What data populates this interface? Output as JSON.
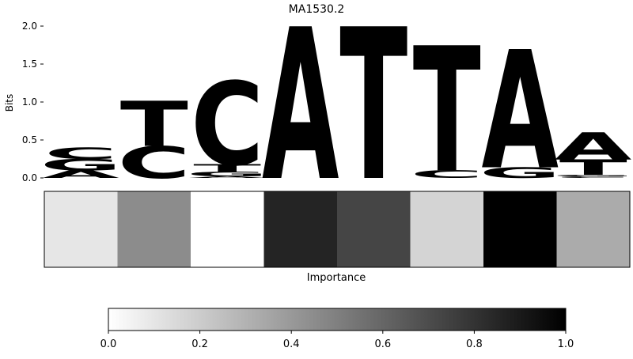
{
  "chart_data": [
    {
      "type": "sequence-logo",
      "title": "MA1530.2",
      "ylabel": "Bits",
      "ylim": [
        0,
        2.0
      ],
      "yticks": [
        "0.0",
        "0.5",
        "1.0",
        "1.5",
        "2.0"
      ],
      "yticks_values": [
        0,
        0.5,
        1.0,
        1.5,
        2.0
      ],
      "positions": [
        [
          {
            "base": "A",
            "height": 0.1
          },
          {
            "base": "G",
            "height": 0.15
          },
          {
            "base": "C",
            "height": 0.15
          }
        ],
        [
          {
            "base": "C",
            "height": 0.42
          },
          {
            "base": "T",
            "height": 0.6
          }
        ],
        [
          {
            "base": "A",
            "height": 0.02
          },
          {
            "base": "G",
            "height": 0.06
          },
          {
            "base": "T",
            "height": 0.1
          },
          {
            "base": "C",
            "height": 1.1
          }
        ],
        [
          {
            "base": "A",
            "height": 2.0
          }
        ],
        [
          {
            "base": "T",
            "height": 2.0
          }
        ],
        [
          {
            "base": "C",
            "height": 0.1
          },
          {
            "base": "T",
            "height": 1.65
          }
        ],
        [
          {
            "base": "G",
            "height": 0.14
          },
          {
            "base": "A",
            "height": 1.56
          }
        ],
        [
          {
            "base": "C",
            "height": 0.02
          },
          {
            "base": "G",
            "height": 0.02
          },
          {
            "base": "T",
            "height": 0.2
          },
          {
            "base": "A",
            "height": 0.36
          }
        ]
      ],
      "colors": {
        "A": "#4ca64c",
        "C": "#4c4cff",
        "G": "#ffbf4c",
        "T": "#ff4c4c"
      }
    },
    {
      "type": "heatmap",
      "xlabel": "Importance",
      "values": [
        0.1,
        0.45,
        0.0,
        0.86,
        0.73,
        0.17,
        1.0,
        0.33
      ],
      "colormap": "Greys",
      "vmin": 0.0,
      "vmax": 1.0,
      "colorbar_ticks": [
        "0.0",
        "0.2",
        "0.4",
        "0.6",
        "0.8",
        "1.0"
      ],
      "colorbar_tick_values": [
        0.0,
        0.2,
        0.4,
        0.6,
        0.8,
        1.0
      ]
    }
  ]
}
